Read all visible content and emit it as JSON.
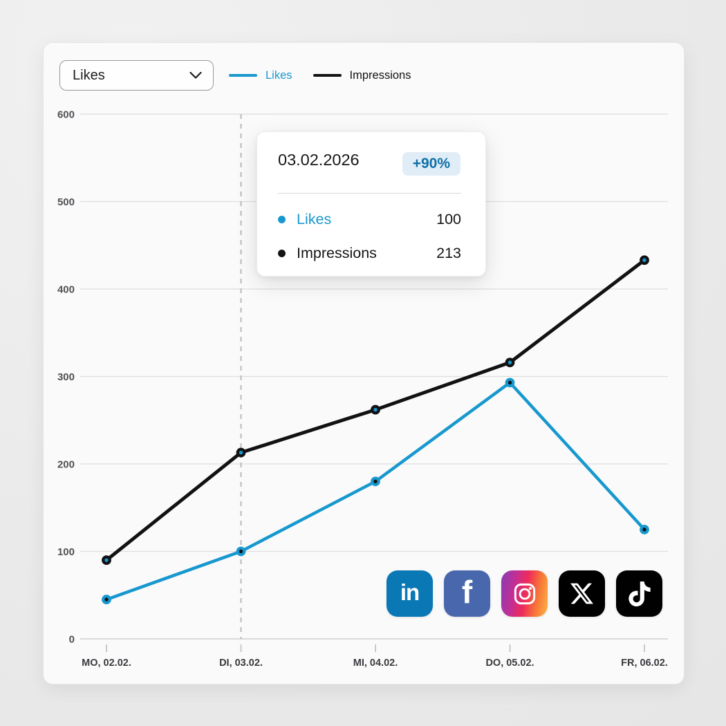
{
  "page": {
    "background": "#EAEAEA",
    "card_background": "#FAFAFA"
  },
  "toolbar": {
    "metric_dropdown": {
      "value": "Likes"
    },
    "legend": [
      {
        "label": "Likes",
        "color": "#1798CE"
      },
      {
        "label": "Impressions",
        "color": "#121214"
      }
    ]
  },
  "chart_data": {
    "type": "line",
    "title": "",
    "xlabel": "",
    "ylabel": "",
    "categories": [
      "MO, 02.02.",
      "DI, 03.02.",
      "MI, 04.02.",
      "DO, 05.02.",
      "FR, 06.02."
    ],
    "series": [
      {
        "name": "Likes",
        "color": "#1798CE",
        "marker_fill": "#121214",
        "values": [
          45,
          100,
          180,
          293,
          125
        ]
      },
      {
        "name": "Impressions",
        "color": "#121214",
        "marker_fill": "#1798CE",
        "values": [
          90,
          213,
          262,
          316,
          433
        ]
      }
    ],
    "yticks": [
      0,
      100,
      200,
      300,
      400,
      500,
      600
    ],
    "ylim": [
      0,
      600
    ],
    "grid": true,
    "legend_position": "top",
    "highlight_index": 1,
    "highlight_style": "dashed-vertical-line",
    "colors": {
      "grid": "#DEDEDE",
      "axis_line": "#CFCFCF",
      "tick": "#C8C8CB",
      "dashed_line": "#B9B9B9",
      "y_label": "#515156",
      "x_label": "#3A3A3F"
    }
  },
  "tooltip": {
    "date": "03.02.2026",
    "badge": "+90%",
    "badge_color": "#0E6FA8",
    "badge_background": "#E0EDF6",
    "rows": [
      {
        "label": "Likes",
        "value": "100",
        "color": "#1798CE"
      },
      {
        "label": "Impressions",
        "value": "213",
        "color": "#141417"
      }
    ]
  },
  "social_bar": {
    "icons": [
      {
        "name": "LinkedIn",
        "background": "#0A78B5"
      },
      {
        "name": "Facebook",
        "background": "#4867AD"
      },
      {
        "name": "Instagram",
        "background": "gradient"
      },
      {
        "name": "X",
        "background": "#000000"
      },
      {
        "name": "TikTok",
        "background": "#010101"
      }
    ]
  }
}
